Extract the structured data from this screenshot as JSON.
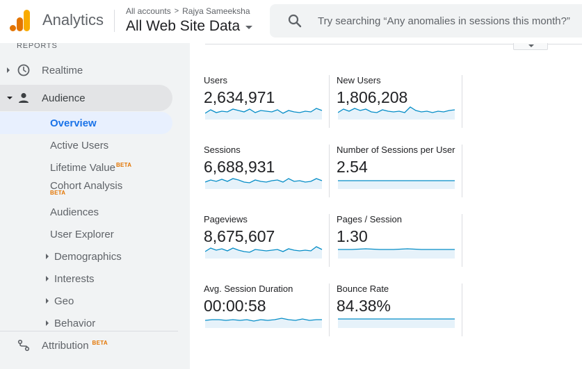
{
  "header": {
    "app_name": "Analytics",
    "breadcrumb": {
      "accounts": "All accounts",
      "separator": ">",
      "account": "Rajya Sameeksha"
    },
    "property_view": "All Web Site Data",
    "search_placeholder": "Try searching “Any anomalies in sessions this month?”"
  },
  "sidebar": {
    "section_label": "REPORTS",
    "realtime": "Realtime",
    "audience": "Audience",
    "audience_items": {
      "overview": "Overview",
      "active_users": "Active Users",
      "lifetime_value": "Lifetime Value",
      "cohort_analysis": "Cohort Analysis",
      "audiences": "Audiences",
      "user_explorer": "User Explorer",
      "demographics": "Demographics",
      "interests": "Interests",
      "geo": "Geo",
      "behavior": "Behavior"
    },
    "attribution": "Attribution",
    "beta_label": "BETA"
  },
  "metrics": [
    {
      "name": "Users",
      "value": "2,634,971"
    },
    {
      "name": "New Users",
      "value": "1,806,208"
    },
    {
      "name": "Sessions",
      "value": "6,688,931"
    },
    {
      "name": "Number of Sessions per User",
      "value": "2.54"
    },
    {
      "name": "Pageviews",
      "value": "8,675,607"
    },
    {
      "name": "Pages / Session",
      "value": "1.30"
    },
    {
      "name": "Avg. Session Duration",
      "value": "00:00:58"
    },
    {
      "name": "Bounce Rate",
      "value": "84.38%"
    }
  ],
  "colors": {
    "accent": "#1a73e8",
    "sparkline": "#058dc7",
    "sparkline_fill": "#e6f2fa",
    "beta": "#e37400",
    "logo_orange": "#f9ab00",
    "logo_dark_orange": "#e37400"
  }
}
